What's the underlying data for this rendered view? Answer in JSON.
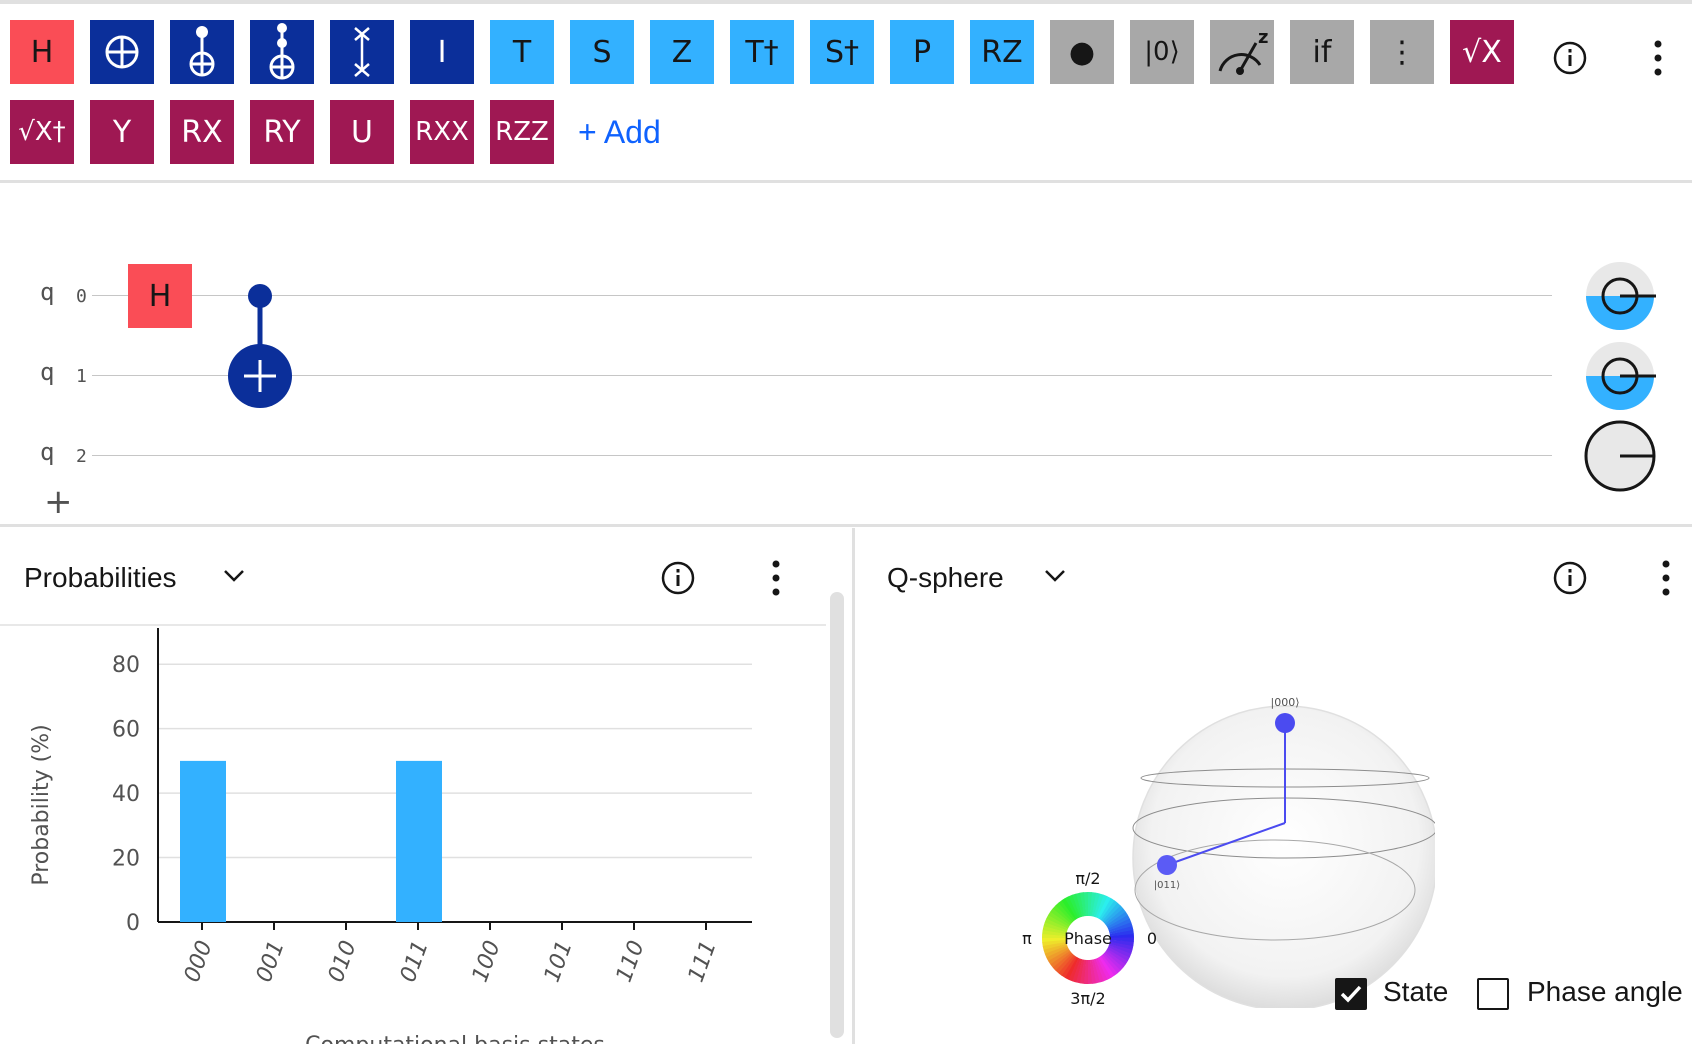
{
  "toolbar": {
    "row1": [
      {
        "label": "H",
        "kind": "red"
      },
      {
        "label": "",
        "kind": "blue",
        "icon": "cnot-target-icon"
      },
      {
        "label": "",
        "kind": "blue",
        "icon": "cnot-gate-icon"
      },
      {
        "label": "",
        "kind": "blue",
        "icon": "toffoli-gate-icon"
      },
      {
        "label": "",
        "kind": "blue",
        "icon": "swap-gate-icon"
      },
      {
        "label": "I",
        "kind": "blue"
      },
      {
        "label": "T",
        "kind": "cyan"
      },
      {
        "label": "S",
        "kind": "cyan"
      },
      {
        "label": "Z",
        "kind": "cyan"
      },
      {
        "label": "T†",
        "kind": "cyan"
      },
      {
        "label": "S†",
        "kind": "cyan"
      },
      {
        "label": "P",
        "kind": "cyan"
      },
      {
        "label": "RZ",
        "kind": "cyan"
      },
      {
        "label": "●",
        "kind": "gray",
        "icon": "control-dot-icon"
      },
      {
        "label": "|0⟩",
        "kind": "gray"
      },
      {
        "label": "",
        "kind": "gray",
        "icon": "measure-z-icon"
      },
      {
        "label": "if",
        "kind": "gray"
      },
      {
        "label": "⋮",
        "kind": "gray",
        "icon": "barrier-icon"
      },
      {
        "label": "√X",
        "kind": "mag"
      }
    ],
    "row2": [
      {
        "label": "√X†",
        "kind": "mag"
      },
      {
        "label": "Y",
        "kind": "mag"
      },
      {
        "label": "RX",
        "kind": "mag"
      },
      {
        "label": "RY",
        "kind": "mag"
      },
      {
        "label": "U",
        "kind": "mag"
      },
      {
        "label": "RXX",
        "kind": "mag"
      },
      {
        "label": "RZZ",
        "kind": "mag"
      }
    ],
    "add_label": "+ Add",
    "colors": {
      "red": "#fa4d56",
      "blue": "#0b2f9a",
      "cyan": "#33b1ff",
      "gray": "#a8a8a8",
      "mag": "#9f1853",
      "link": "#0f62fe"
    }
  },
  "circuit": {
    "qubits": [
      {
        "name": "q",
        "index": "0"
      },
      {
        "name": "q",
        "index": "1"
      },
      {
        "name": "q",
        "index": "2"
      }
    ],
    "gates": [
      {
        "label": "H",
        "qubit": 0
      },
      {
        "type": "cnot",
        "control": 0,
        "target": 1
      }
    ],
    "add_qubit": "+",
    "qubit_state_fill": [
      0.5,
      0.5,
      0
    ]
  },
  "probabilities": {
    "title": "Probabilities",
    "chart_data": {
      "type": "bar",
      "categories": [
        "000",
        "001",
        "010",
        "011",
        "100",
        "101",
        "110",
        "111"
      ],
      "values": [
        50,
        0,
        0,
        50,
        0,
        0,
        0,
        0
      ],
      "ylabel": "Probability (%)",
      "xlabel": "Computational basis states",
      "ylim": [
        0,
        90
      ],
      "yticks": [
        0,
        20,
        40,
        60,
        80
      ],
      "grid": true,
      "color": "#33b1ff"
    }
  },
  "qsphere": {
    "title": "Q-sphere",
    "state_top": "|000⟩",
    "state_side": "|011⟩",
    "phase_label": "Phase",
    "phase_top": "π/2",
    "phase_left": "π",
    "phase_right": "0",
    "phase_bottom": "3π/2",
    "state_checkbox": {
      "label": "State",
      "checked": true
    },
    "phase_angle_checkbox": {
      "label": "Phase angle",
      "checked": false
    }
  }
}
